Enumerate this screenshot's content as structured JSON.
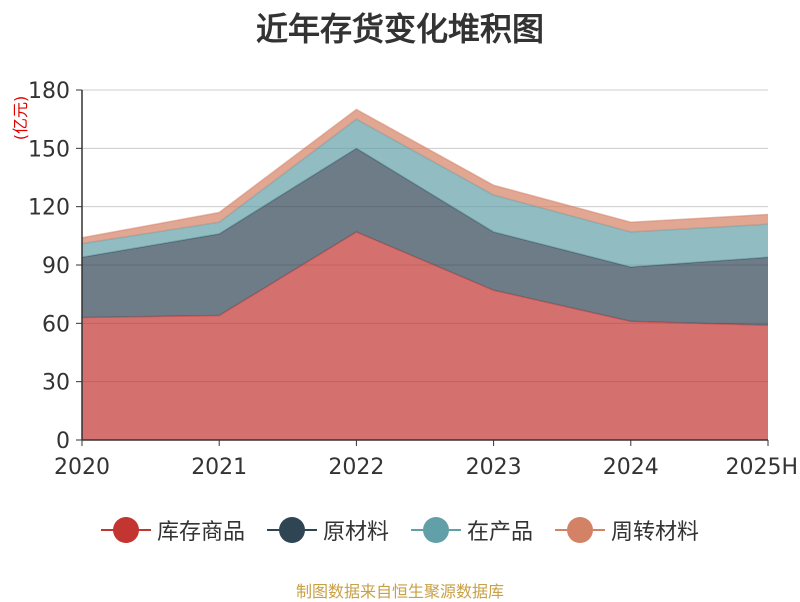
{
  "chart_data": {
    "type": "area",
    "stacked": true,
    "title": "近年存货变化堆积图",
    "ylabel": "(亿元)",
    "categories": [
      "2020",
      "2021",
      "2022",
      "2023",
      "2024",
      "2025H"
    ],
    "ylim": [
      0,
      180
    ],
    "yticks": [
      0,
      30,
      60,
      90,
      120,
      150,
      180
    ],
    "grid": true,
    "legend_position": "bottom",
    "series": [
      {
        "name": "库存商品",
        "values": [
          63,
          64,
          107,
          77,
          61,
          59
        ],
        "color": "#c23531"
      },
      {
        "name": "原材料",
        "values": [
          31,
          42,
          43,
          30,
          28,
          35
        ],
        "color": "#2f4554"
      },
      {
        "name": "在产品",
        "values": [
          7,
          6,
          15,
          19,
          18,
          17
        ],
        "color": "#61a0a8"
      },
      {
        "name": "周转材料",
        "values": [
          3,
          5,
          5,
          5,
          5,
          5
        ],
        "color": "#d48265"
      }
    ],
    "source_note": "制图数据来自恒生聚源数据库"
  }
}
